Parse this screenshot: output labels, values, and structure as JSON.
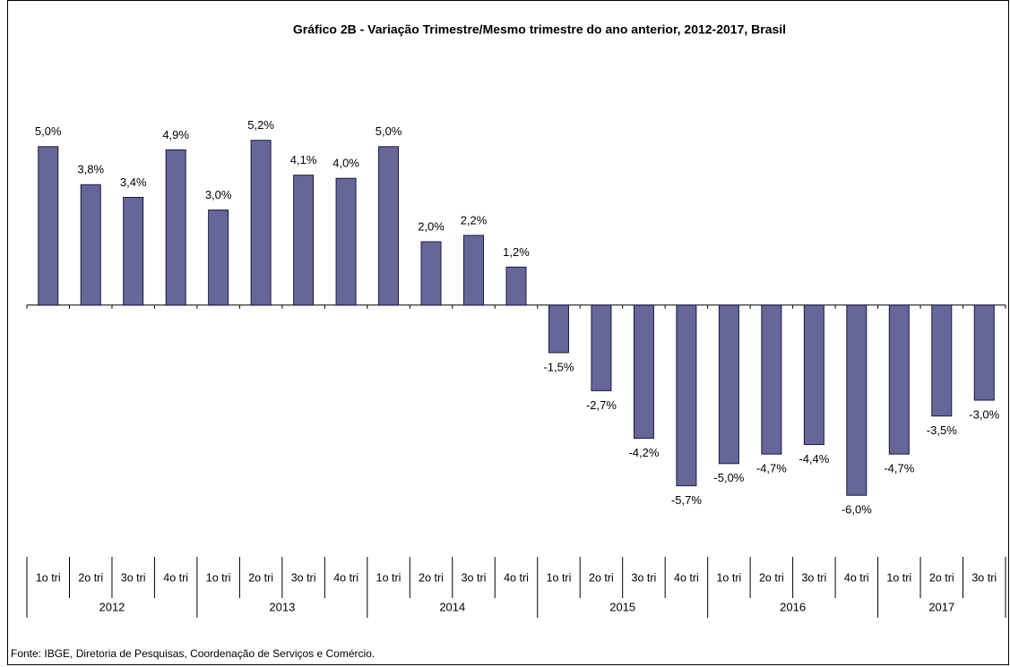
{
  "chart_data": {
    "type": "bar",
    "title": "Gráfico 2B - Variação Trimestre/Mesmo trimestre do ano anterior, 2012-2017, Brasil",
    "category_groups": [
      {
        "label": "2012",
        "categories": [
          "1o tri",
          "2o tri",
          "3o tri",
          "4o tri"
        ]
      },
      {
        "label": "2013",
        "categories": [
          "1o tri",
          "2o tri",
          "3o tri",
          "4o tri"
        ]
      },
      {
        "label": "2014",
        "categories": [
          "1o tri",
          "2o tri",
          "3o tri",
          "4o tri"
        ]
      },
      {
        "label": "2015",
        "categories": [
          "1o tri",
          "2o tri",
          "3o tri",
          "4o tri"
        ]
      },
      {
        "label": "2016",
        "categories": [
          "1o tri",
          "2o tri",
          "3o tri",
          "4o tri"
        ]
      },
      {
        "label": "2017",
        "categories": [
          "1o tri",
          "2o tri",
          "3o tri"
        ]
      }
    ],
    "values": [
      5.0,
      3.8,
      3.4,
      4.9,
      3.0,
      5.2,
      4.1,
      4.0,
      5.0,
      2.0,
      2.2,
      1.2,
      -1.5,
      -2.7,
      -4.2,
      -5.7,
      -5.0,
      -4.7,
      -4.4,
      -6.0,
      -4.7,
      -3.5,
      -3.0
    ],
    "value_labels": [
      "5,0%",
      "3,8%",
      "3,4%",
      "4,9%",
      "3,0%",
      "5,2%",
      "4,1%",
      "4,0%",
      "5,0%",
      "2,0%",
      "2,2%",
      "1,2%",
      "-1,5%",
      "-2,7%",
      "-4,2%",
      "-5,7%",
      "-5,0%",
      "-4,7%",
      "-4,4%",
      "-6,0%",
      "-4,7%",
      "-3,5%",
      "-3,0%"
    ],
    "color": "#666699",
    "ylim": [
      -8,
      7
    ],
    "source": "Fonte: IBGE, Diretoria de Pesquisas, Coordenação de Serviços e Comércio."
  }
}
